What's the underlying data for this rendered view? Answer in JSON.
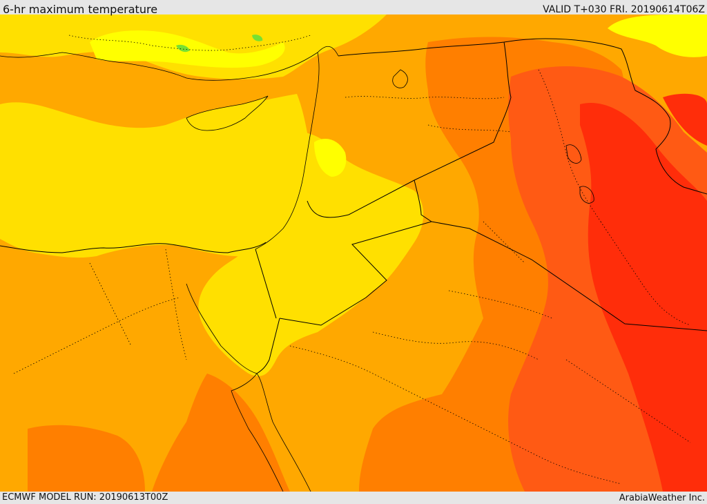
{
  "header": {
    "title": "6-hr maximum temperature",
    "valid": "VALID T+030 FRI. 20190614T06Z"
  },
  "footer": {
    "model_run": "ECMWF MODEL RUN: 20190613T00Z",
    "credit": "ArabiaWeather Inc."
  },
  "map": {
    "palette": {
      "sea_surface": "#ffe000",
      "warm": "#ffa800",
      "hot": "#ff7f00",
      "hotter": "#ff5a14",
      "hottest": "#ff2d0a",
      "cool": "#ffff00",
      "coolest": "#77e033",
      "outline": "#000000"
    }
  }
}
